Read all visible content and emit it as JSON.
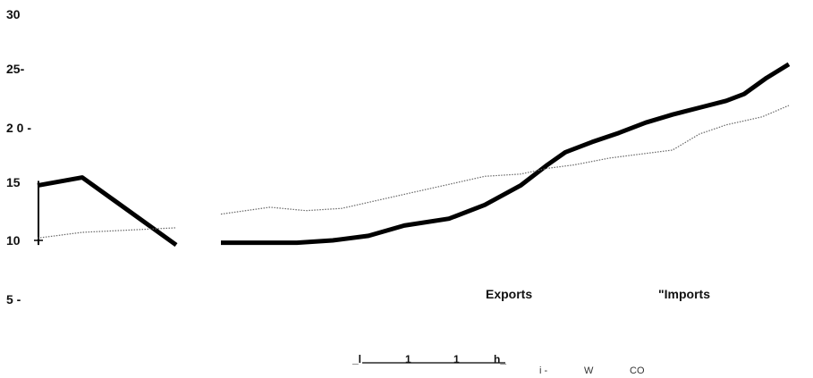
{
  "chart_data": {
    "type": "line",
    "y_tick_labels": [
      "30",
      "25-",
      "2 0 -",
      "15",
      "10",
      "5  -"
    ],
    "y_tick_values": [
      30,
      25,
      20,
      15,
      10,
      5
    ],
    "ylim": [
      5,
      30
    ],
    "series": [
      {
        "name": "Exports",
        "color": "#000000",
        "segments": [
          [
            [
              0,
              14.8
            ],
            [
              50,
              15.5
            ],
            [
              155,
              9.6
            ]
          ],
          [
            [
              205,
              9.8
            ],
            [
              290,
              9.8
            ],
            [
              330,
              10.0
            ],
            [
              370,
              10.4
            ],
            [
              410,
              11.3
            ],
            [
              460,
              11.9
            ],
            [
              500,
              13.1
            ],
            [
              540,
              14.8
            ],
            [
              570,
              16.6
            ],
            [
              590,
              17.7
            ],
            [
              620,
              18.6
            ],
            [
              650,
              19.4
            ],
            [
              680,
              20.3
            ],
            [
              710,
              21.0
            ],
            [
              740,
              21.6
            ],
            [
              770,
              22.2
            ],
            [
              790,
              22.8
            ],
            [
              815,
              24.2
            ],
            [
              840,
              25.4
            ]
          ]
        ]
      },
      {
        "name": "Imports",
        "color": "#666666",
        "segments": [
          [
            [
              0,
              10.2
            ],
            [
              50,
              10.7
            ],
            [
              155,
              11.1
            ]
          ],
          [
            [
              205,
              12.3
            ],
            [
              260,
              12.9
            ],
            [
              300,
              12.6
            ],
            [
              340,
              12.8
            ],
            [
              380,
              13.5
            ],
            [
              420,
              14.2
            ],
            [
              460,
              14.9
            ],
            [
              500,
              15.6
            ],
            [
              540,
              15.8
            ],
            [
              570,
              16.3
            ],
            [
              600,
              16.6
            ],
            [
              640,
              17.2
            ],
            [
              680,
              17.6
            ],
            [
              710,
              17.9
            ],
            [
              740,
              19.3
            ],
            [
              770,
              20.1
            ],
            [
              810,
              20.8
            ],
            [
              840,
              21.8
            ]
          ]
        ]
      }
    ],
    "legend": [
      {
        "label": "Exports"
      },
      {
        "label": "\"Imports"
      }
    ],
    "x_axis_fragment": {
      "start": "_l",
      "ticks": [
        "1",
        "1"
      ],
      "end": "h_"
    },
    "stray_text": [
      "i -",
      "W",
      "CO"
    ]
  }
}
